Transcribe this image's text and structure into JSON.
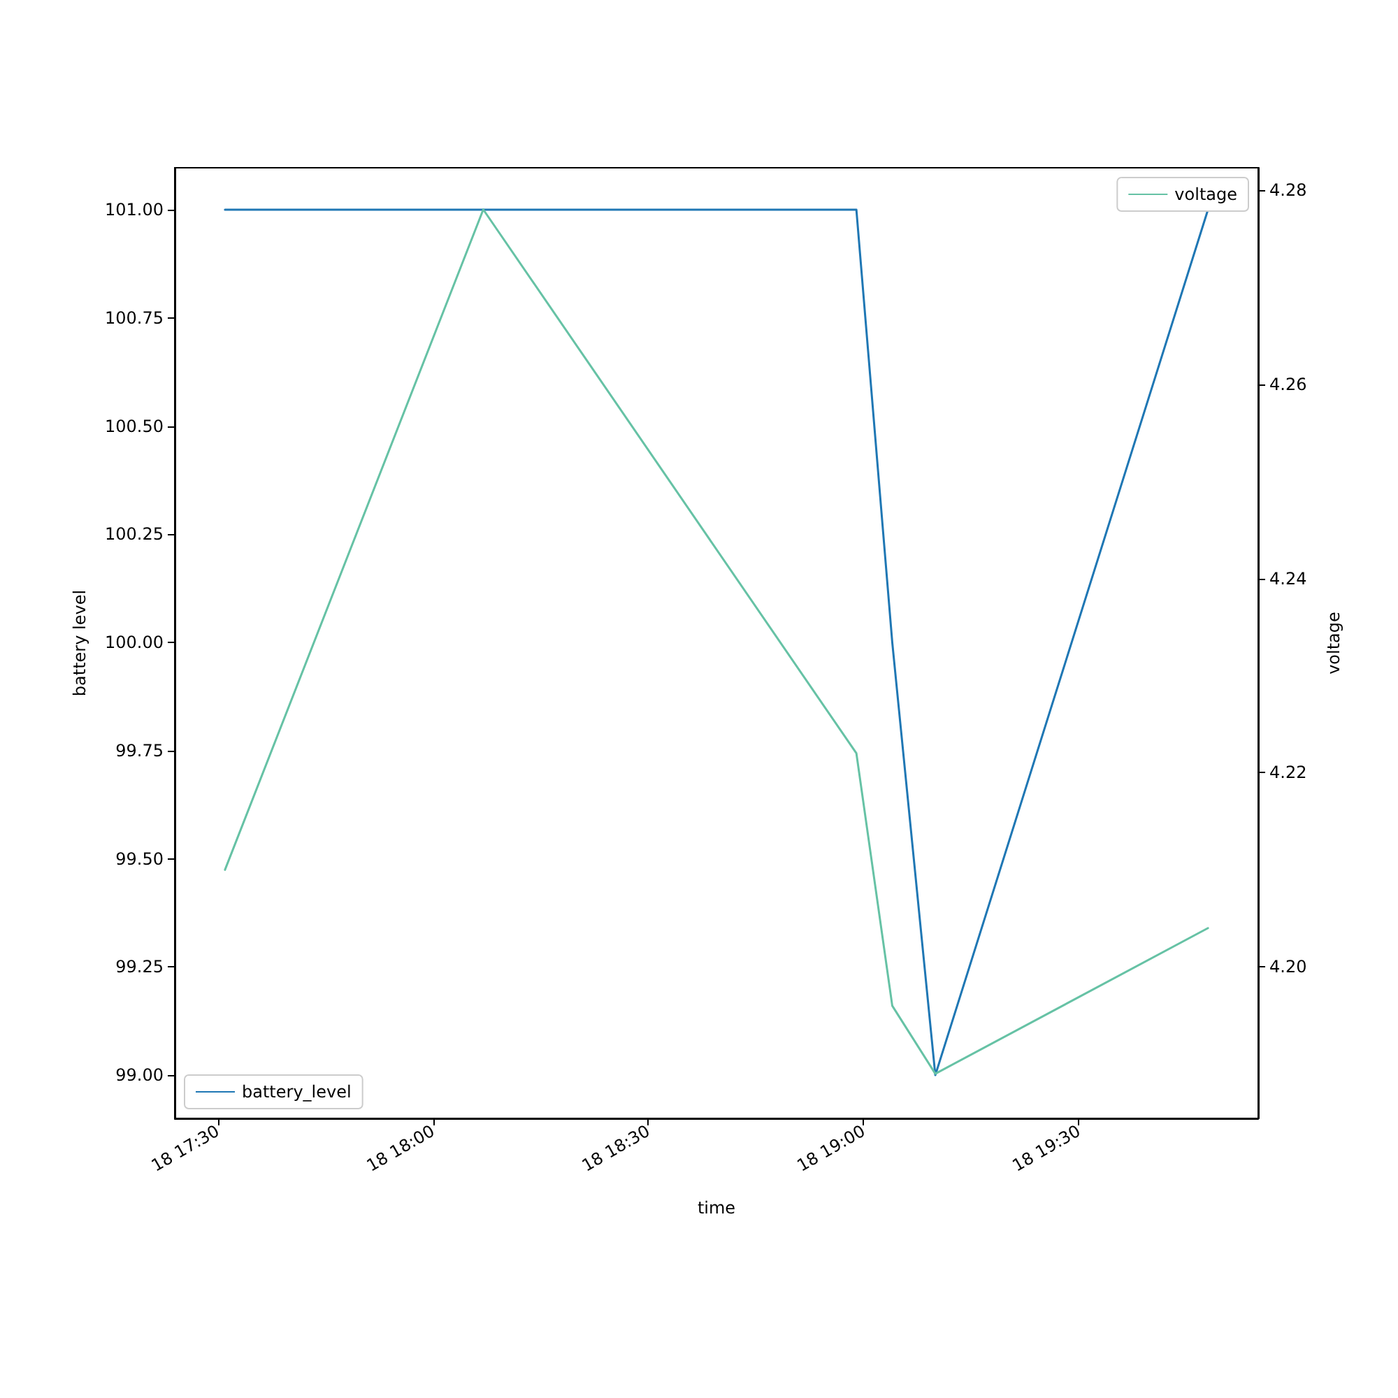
{
  "chart_data": {
    "type": "line",
    "xlabel": "time",
    "ylabel": "battery level",
    "y2label": "voltage",
    "xlim": [
      "--01-18T17:24",
      "--01-18T19:55"
    ],
    "xticks": [
      {
        "value": "--01-18T17:30",
        "label": "18 17:30"
      },
      {
        "value": "--01-18T18:00",
        "label": "18 18:00"
      },
      {
        "value": "--01-18T18:30",
        "label": "18 18:30"
      },
      {
        "value": "--01-18T19:00",
        "label": "18 19:00"
      },
      {
        "value": "--01-18T19:30",
        "label": "18 19:30"
      }
    ],
    "legend": "bottom left",
    "ylim": [
      98.9,
      101.097
    ],
    "yticks": [
      {
        "value": 99,
        "label": "99.00"
      },
      {
        "value": 99.25,
        "label": "99.25"
      },
      {
        "value": 99.5,
        "label": "99.50"
      },
      {
        "value": 99.75,
        "label": "99.75"
      },
      {
        "value": 100,
        "label": "100.00"
      },
      {
        "value": 100.25,
        "label": "100.25"
      },
      {
        "value": 100.5,
        "label": "100.50"
      },
      {
        "value": 100.75,
        "label": "100.75"
      },
      {
        "value": 101,
        "label": "101.00"
      }
    ],
    "y2lim": [
      4.1844,
      4.2823
    ],
    "y2ticks": [
      {
        "value": 4.2,
        "label": "4.20"
      },
      {
        "value": 4.22,
        "label": "4.22"
      },
      {
        "value": 4.24,
        "label": "4.24"
      },
      {
        "value": 4.26,
        "label": "4.26"
      },
      {
        "value": 4.28,
        "label": "4.28"
      }
    ],
    "grid": false,
    "marker": "none",
    "line_style": "solid",
    "series": [
      {
        "name": "battery_level",
        "color": "#1f77b4",
        "x": [
          "--01-18T17:31",
          "--01-18T18:59",
          "--01-18T19:04",
          "--01-18T19:10",
          "--01-18T19:48"
        ],
        "values": [
          101,
          101,
          100,
          99,
          101
        ]
      },
      {
        "name": "voltage",
        "color": "#66c2a5",
        "axis": "y2",
        "x": [
          "--01-18T17:31",
          "--01-18T18:07",
          "--01-18T18:59",
          "--01-18T19:04",
          "--01-18T19:10",
          "--01-18T19:48"
        ],
        "values": [
          4.21,
          4.278,
          4.222,
          4.196,
          4.189,
          4.204
        ]
      }
    ]
  }
}
